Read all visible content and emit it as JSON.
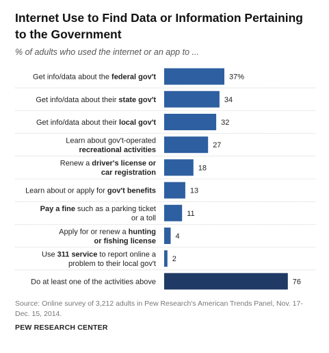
{
  "title": "Internet Use to Find Data or Information Pertaining to the Government",
  "subtitle": "% of adults who used the internet or an app to ...",
  "source": "Source: Online survey of 3,212 adults in Pew Research's American Trends Panel, Nov. 17-Dec. 15, 2014.",
  "organization": "PEW RESEARCH CENTER",
  "colors": {
    "bar": "#2e5fa0",
    "bar_total": "#1f3a64",
    "divider": "#cccccc",
    "label_text": "#222222"
  },
  "chart_data": {
    "type": "bar",
    "orientation": "horizontal",
    "title": "Internet Use to Find Data or Information Pertaining to the Government",
    "subtitle": "% of adults who used the internet or an app to ...",
    "value_suffix_first": "%",
    "xlim": [
      0,
      100
    ],
    "grid": false,
    "legend": "none",
    "items": [
      {
        "lines": [
          [
            {
              "t": "Get info/data about the ",
              "b": false
            },
            {
              "t": "federal gov't",
              "b": true
            }
          ]
        ],
        "value": 37,
        "label": "37%"
      },
      {
        "lines": [
          [
            {
              "t": "Get info/data about their ",
              "b": false
            },
            {
              "t": "state gov't",
              "b": true
            }
          ]
        ],
        "value": 34,
        "label": "34"
      },
      {
        "lines": [
          [
            {
              "t": "Get info/data about their ",
              "b": false
            },
            {
              "t": "local gov't",
              "b": true
            }
          ]
        ],
        "value": 32,
        "label": "32"
      },
      {
        "lines": [
          [
            {
              "t": "Learn about gov't-operated",
              "b": false
            }
          ],
          [
            {
              "t": "recreational activities",
              "b": true
            }
          ]
        ],
        "value": 27,
        "label": "27"
      },
      {
        "lines": [
          [
            {
              "t": "Renew a ",
              "b": false
            },
            {
              "t": "driver's license or",
              "b": true
            }
          ],
          [
            {
              "t": "car registration",
              "b": true
            }
          ]
        ],
        "value": 18,
        "label": "18"
      },
      {
        "lines": [
          [
            {
              "t": "Learn about or apply for ",
              "b": false
            },
            {
              "t": "gov't benefits",
              "b": true
            }
          ]
        ],
        "value": 13,
        "label": "13"
      },
      {
        "lines": [
          [
            {
              "t": "Pay a fine",
              "b": true
            },
            {
              "t": " such as a parking ticket",
              "b": false
            }
          ],
          [
            {
              "t": "or a toll",
              "b": false
            }
          ]
        ],
        "value": 11,
        "label": "11"
      },
      {
        "lines": [
          [
            {
              "t": "Apply for or renew a ",
              "b": false
            },
            {
              "t": "hunting",
              "b": true
            }
          ],
          [
            {
              "t": "or fishing license",
              "b": true
            }
          ]
        ],
        "value": 4,
        "label": "4"
      },
      {
        "lines": [
          [
            {
              "t": "Use ",
              "b": false
            },
            {
              "t": "311 service",
              "b": true
            },
            {
              "t": " to report online a",
              "b": false
            }
          ],
          [
            {
              "t": "problem to their local gov't",
              "b": false
            }
          ]
        ],
        "value": 2,
        "label": "2"
      },
      {
        "lines": [
          [
            {
              "t": "Do at least one of the activities above",
              "b": false
            }
          ]
        ],
        "value": 76,
        "label": "76",
        "total": true
      }
    ]
  }
}
